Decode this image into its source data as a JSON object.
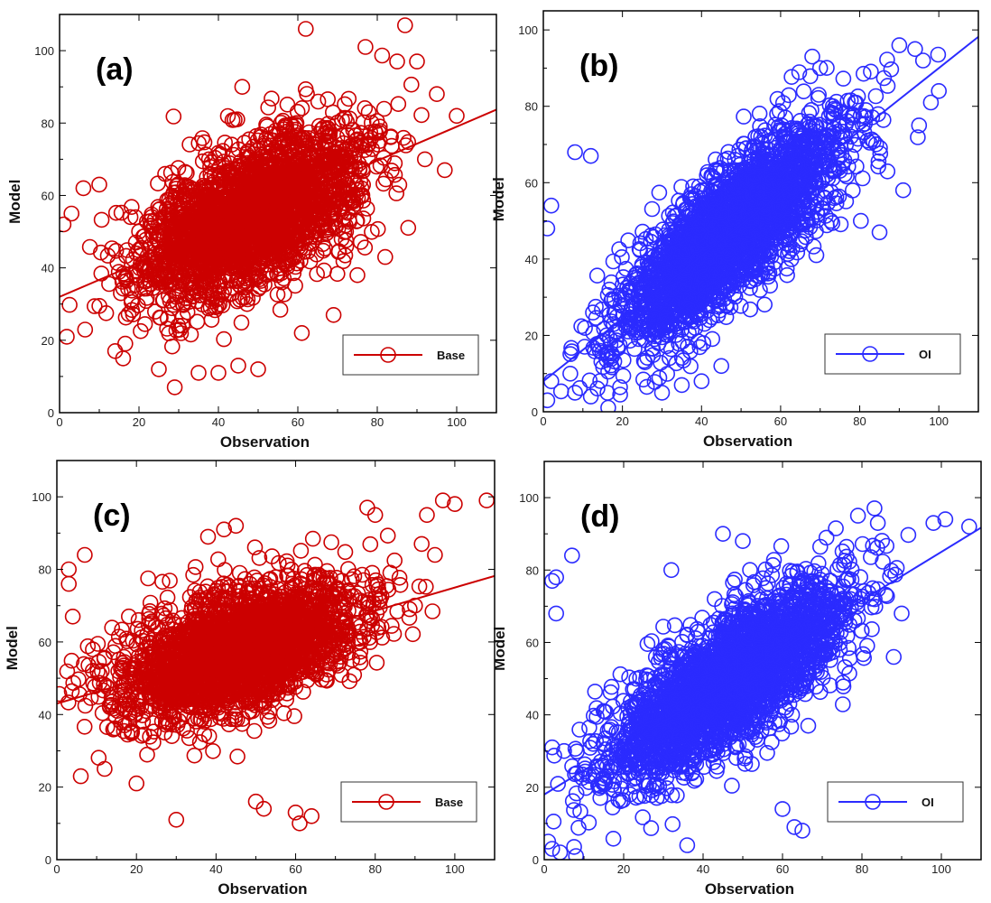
{
  "chart_data": [
    {
      "type": "scatter",
      "panel_label": "(a)",
      "xlabel": "Observation",
      "ylabel": "Model",
      "xlim": [
        0,
        110
      ],
      "ylim": [
        0,
        110
      ],
      "xticks": [
        0,
        20,
        40,
        60,
        80,
        100
      ],
      "yticks": [
        0,
        20,
        40,
        60,
        80,
        100
      ],
      "grid": false,
      "legend_position": "bottom-right",
      "color": "#cc0000",
      "marker": "open-circle",
      "series": [
        {
          "name": "Base",
          "cloud": {
            "count": 2600,
            "x_mean": 48,
            "x_sd": 14,
            "slope": 0.47,
            "intercept": 32,
            "noise_sd": 9.5,
            "seed": 11
          },
          "points": [
            [
              62,
              106
            ],
            [
              87,
              107
            ],
            [
              95,
              88
            ],
            [
              92,
              70
            ],
            [
              82,
              43
            ],
            [
              75,
              38
            ],
            [
              69,
              27
            ],
            [
              29,
              7
            ],
            [
              35,
              11
            ],
            [
              50,
              12
            ],
            [
              45,
              13
            ],
            [
              40,
              11
            ],
            [
              3,
              55
            ],
            [
              1,
              52
            ],
            [
              6,
              62
            ],
            [
              10,
              63
            ],
            [
              14,
              17
            ],
            [
              16,
              15
            ],
            [
              85,
              97
            ],
            [
              90,
              97
            ],
            [
              61,
              22
            ],
            [
              56,
              36
            ],
            [
              46,
              90
            ],
            [
              100,
              82
            ],
            [
              97,
              67
            ],
            [
              25,
              12
            ]
          ]
        }
      ],
      "fit_line": {
        "slope": 0.47,
        "intercept": 32
      }
    },
    {
      "type": "scatter",
      "panel_label": "(b)",
      "xlabel": "Observation",
      "ylabel": "Model",
      "xlim": [
        0,
        110
      ],
      "ylim": [
        0,
        105
      ],
      "xticks": [
        0,
        20,
        40,
        60,
        80,
        100
      ],
      "yticks": [
        0,
        20,
        40,
        60,
        80,
        100
      ],
      "grid": false,
      "legend_position": "bottom-right",
      "color": "#2b2bff",
      "marker": "open-circle",
      "series": [
        {
          "name": "OI",
          "cloud": {
            "count": 2600,
            "x_mean": 47,
            "x_sd": 14,
            "slope": 0.82,
            "intercept": 8,
            "noise_sd": 8.5,
            "seed": 23
          },
          "points": [
            [
              1,
              3
            ],
            [
              2,
              8
            ],
            [
              8,
              68
            ],
            [
              12,
              67
            ],
            [
              1,
              48
            ],
            [
              2,
              54
            ],
            [
              90,
              96
            ],
            [
              94,
              95
            ],
            [
              96,
              92
            ],
            [
              91,
              58
            ],
            [
              85,
              47
            ],
            [
              100,
              84
            ],
            [
              70,
              90
            ],
            [
              68,
              93
            ],
            [
              40,
              8
            ],
            [
              45,
              12
            ],
            [
              35,
              7
            ],
            [
              30,
              5
            ],
            [
              12,
              4
            ],
            [
              8,
              5
            ],
            [
              95,
              75
            ],
            [
              98,
              81
            ]
          ]
        }
      ],
      "fit_line": {
        "slope": 0.82,
        "intercept": 8
      }
    },
    {
      "type": "scatter",
      "panel_label": "(c)",
      "xlabel": "Observation",
      "ylabel": "Model",
      "xlim": [
        0,
        110
      ],
      "ylim": [
        0,
        110
      ],
      "xticks": [
        0,
        20,
        40,
        60,
        80,
        100
      ],
      "yticks": [
        0,
        20,
        40,
        60,
        80,
        100
      ],
      "grid": false,
      "legend_position": "bottom-right",
      "color": "#cc0000",
      "marker": "open-circle",
      "series": [
        {
          "name": "Base",
          "cloud": {
            "count": 2700,
            "x_mean": 46,
            "x_sd": 15,
            "slope": 0.32,
            "intercept": 43,
            "noise_sd": 8,
            "seed": 37
          },
          "points": [
            [
              108,
              99
            ],
            [
              100,
              98
            ],
            [
              97,
              99
            ],
            [
              93,
              95
            ],
            [
              78,
              97
            ],
            [
              80,
              95
            ],
            [
              42,
              91
            ],
            [
              45,
              92
            ],
            [
              38,
              89
            ],
            [
              3,
              80
            ],
            [
              3,
              76
            ],
            [
              7,
              84
            ],
            [
              4,
              67
            ],
            [
              6,
              23
            ],
            [
              30,
              11
            ],
            [
              52,
              14
            ],
            [
              60,
              13
            ],
            [
              61,
              10
            ],
            [
              64,
              12
            ],
            [
              95,
              84
            ],
            [
              90,
              70
            ],
            [
              20,
              21
            ],
            [
              50,
              16
            ],
            [
              12,
              25
            ]
          ]
        }
      ],
      "fit_line": {
        "slope": 0.32,
        "intercept": 43
      }
    },
    {
      "type": "scatter",
      "panel_label": "(d)",
      "xlabel": "Observation",
      "ylabel": "Model",
      "xlim": [
        0,
        110
      ],
      "ylim": [
        0,
        110
      ],
      "xticks": [
        0,
        20,
        40,
        60,
        80,
        100
      ],
      "yticks": [
        0,
        20,
        40,
        60,
        80,
        100
      ],
      "grid": false,
      "legend_position": "bottom-right",
      "color": "#2b2bff",
      "marker": "open-circle",
      "series": [
        {
          "name": "OI",
          "cloud": {
            "count": 2700,
            "x_mean": 46,
            "x_sd": 15,
            "slope": 0.67,
            "intercept": 18,
            "noise_sd": 9,
            "seed": 59
          },
          "points": [
            [
              2,
              77
            ],
            [
              3,
              78
            ],
            [
              7,
              84
            ],
            [
              3,
              68
            ],
            [
              1,
              5
            ],
            [
              2,
              3
            ],
            [
              4,
              2
            ],
            [
              8,
              1
            ],
            [
              36,
              4
            ],
            [
              63,
              9
            ],
            [
              65,
              8
            ],
            [
              60,
              14
            ],
            [
              101,
              94
            ],
            [
              107,
              92
            ],
            [
              98,
              93
            ],
            [
              79,
              95
            ],
            [
              84,
              93
            ],
            [
              88,
              56
            ],
            [
              90,
              68
            ],
            [
              45,
              90
            ],
            [
              50,
              88
            ],
            [
              2,
              31
            ],
            [
              5,
              30
            ],
            [
              32,
              80
            ]
          ]
        }
      ],
      "fit_line": {
        "slope": 0.67,
        "intercept": 18
      }
    }
  ]
}
